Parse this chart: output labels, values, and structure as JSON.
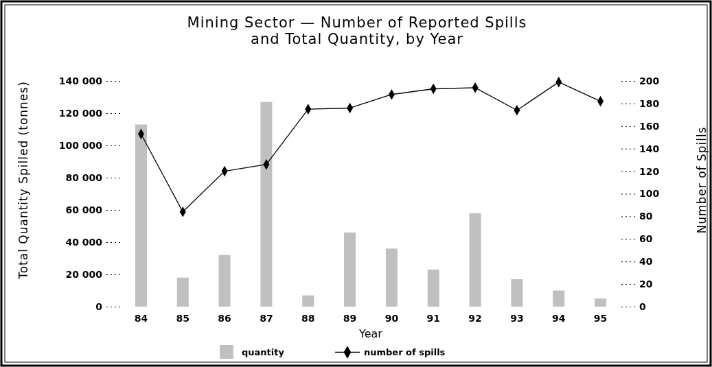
{
  "chart_data": {
    "type": "bar",
    "title": "Mining Sector — Number of Reported Spills\nand Total Quantity, by Year",
    "xlabel": "Year",
    "ylabel": "Total Quantity Spilled (tonnes)",
    "y2label": "Number of Spills",
    "categories": [
      "84",
      "85",
      "86",
      "87",
      "88",
      "89",
      "90",
      "91",
      "92",
      "93",
      "94",
      "95"
    ],
    "series": [
      {
        "name": "quantity",
        "type": "bar",
        "color": "#c0c0c0",
        "values": [
          113000,
          18000,
          32000,
          127000,
          7000,
          46000,
          36000,
          23000,
          58000,
          17000,
          10000,
          5000
        ]
      },
      {
        "name": "number of spills",
        "type": "line",
        "axis": "y2",
        "color": "#000000",
        "marker": "diamond",
        "line_style": "solid",
        "values": [
          153,
          84,
          120,
          126,
          175,
          176,
          188,
          193,
          194,
          174,
          199,
          182
        ]
      }
    ],
    "ylim": [
      0,
      140000
    ],
    "yticks": [
      0,
      {
        "value": 20000,
        "label": "20 000"
      },
      {
        "value": 40000,
        "label": "40 000"
      },
      {
        "value": 60000,
        "label": "60 000"
      },
      {
        "value": 80000,
        "label": "80 000"
      },
      {
        "value": 100000,
        "label": "100 000"
      },
      {
        "value": 120000,
        "label": "120 000"
      },
      {
        "value": 140000,
        "label": "140 000"
      }
    ],
    "y2lim": [
      0,
      200
    ],
    "y2ticks": [
      0,
      20,
      40,
      60,
      80,
      100,
      120,
      140,
      160,
      180,
      200
    ],
    "grid": false,
    "legend": "bottom"
  }
}
